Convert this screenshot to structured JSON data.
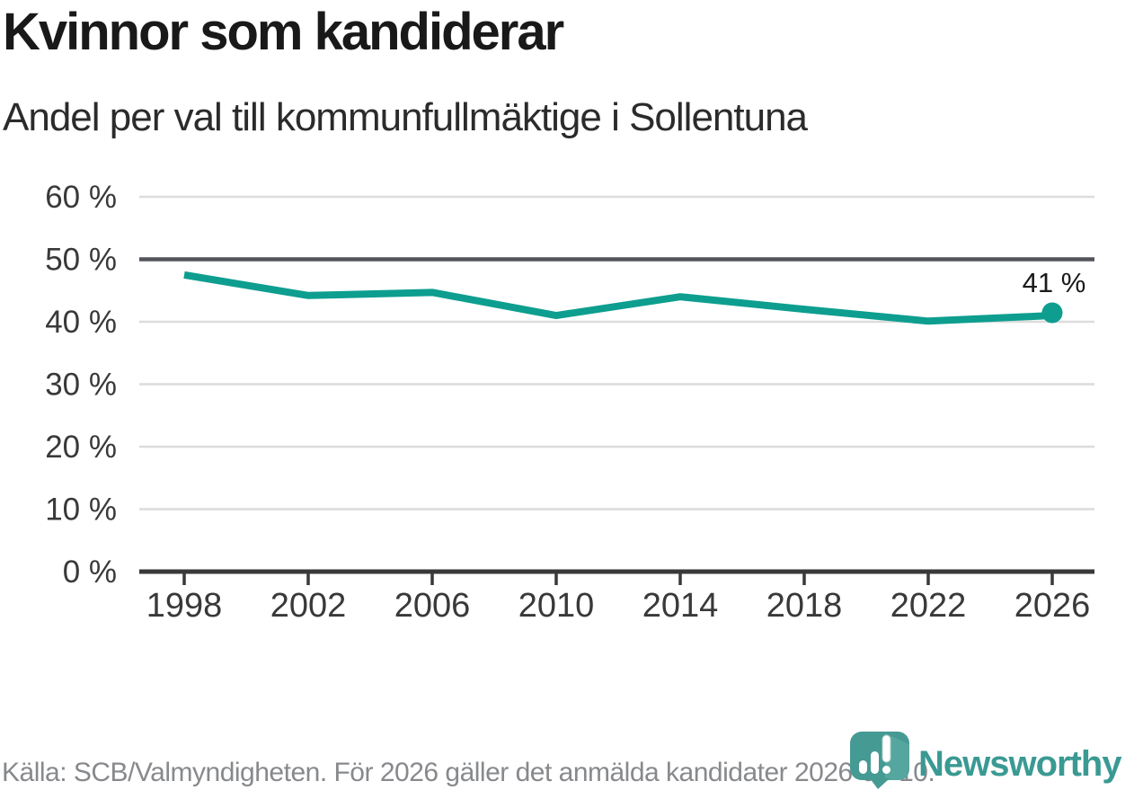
{
  "header": {
    "title": "Kvinnor som kandiderar",
    "subtitle": "Andel per val till kommunfullmäktige i Sollentuna"
  },
  "chart_data": {
    "type": "line",
    "title": "Kvinnor som kandiderar",
    "subtitle": "Andel per val till kommunfullmäktige i Sollentuna",
    "x": [
      1998,
      2002,
      2006,
      2010,
      2014,
      2018,
      2022,
      2026
    ],
    "values": [
      47.5,
      44.2,
      44.7,
      41,
      44,
      42,
      40.1,
      41
    ],
    "x_tick_labels": [
      "1998",
      "2002",
      "2006",
      "2010",
      "2014",
      "2018",
      "2022",
      "2026"
    ],
    "y_ticks": [
      0,
      10,
      20,
      30,
      40,
      50,
      60
    ],
    "y_tick_suffix": " %",
    "ylim": [
      0,
      60
    ],
    "reference_line_y": 50,
    "grid": "horizontal",
    "legend": "none",
    "end_label": "41 %"
  },
  "footer": {
    "source": "Källa: SCB/Valmyndigheten. För 2026 gäller det anmälda kandidater 2026-04-10.",
    "brand": "Newsworthy"
  },
  "colors": {
    "line_teal": "#0d9e8f",
    "reference_line": "#54555c",
    "gridline": "#dcdcdc",
    "axis": "#393939",
    "axis_text": "#393939",
    "end_label_text": "#1a1a1a",
    "muted_text": "#87898c",
    "brand_teal": "#459a93"
  }
}
